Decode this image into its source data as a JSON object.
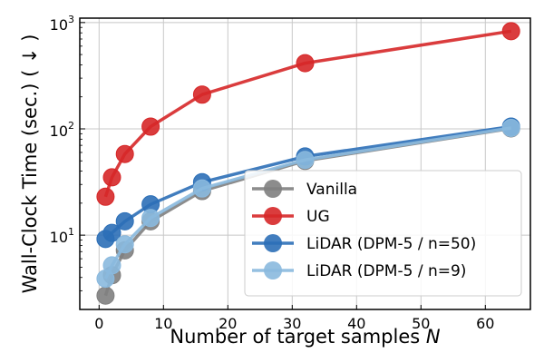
{
  "chart_data": {
    "type": "line",
    "title": "",
    "xlabel": "Number of target samples",
    "xlabel_var": "N",
    "ylabel": "Wall-Clock Time (sec.) ( ↓ )",
    "xlim": [
      -3,
      67
    ],
    "ylim": [
      2.0,
      1100
    ],
    "yscale": "log",
    "grid": true,
    "legend_position": "bottom-right",
    "x_ticks": [
      {
        "value": 0,
        "label": "0"
      },
      {
        "value": 10,
        "label": "10"
      },
      {
        "value": 20,
        "label": "20"
      },
      {
        "value": 30,
        "label": "30"
      },
      {
        "value": 40,
        "label": "40"
      },
      {
        "value": 50,
        "label": "50"
      },
      {
        "value": 60,
        "label": "60"
      }
    ],
    "y_ticks": [
      {
        "value": 10,
        "base": "10",
        "exp": "1"
      },
      {
        "value": 100,
        "base": "10",
        "exp": "2"
      },
      {
        "value": 1000,
        "base": "10",
        "exp": "3"
      }
    ],
    "x": [
      1,
      2,
      4,
      8,
      16,
      32,
      64
    ],
    "series": [
      {
        "name": "Vanilla",
        "color": "#7f7f7f",
        "values": [
          2.7,
          4.2,
          7.2,
          13.5,
          26,
          50,
          101
        ]
      },
      {
        "name": "UG",
        "color": "#d62728",
        "values": [
          23,
          35,
          58,
          105,
          210,
          415,
          830
        ]
      },
      {
        "name": "LiDAR (DPM-5 / n=50)",
        "color": "#2c6fb7",
        "values": [
          9.2,
          10.5,
          13.5,
          19.5,
          31.5,
          55,
          105
        ]
      },
      {
        "name": "LiDAR (DPM-5 / n=9)",
        "color": "#8ab9de",
        "values": [
          3.9,
          5.2,
          8.2,
          14.5,
          27.5,
          51,
          102
        ]
      }
    ]
  }
}
